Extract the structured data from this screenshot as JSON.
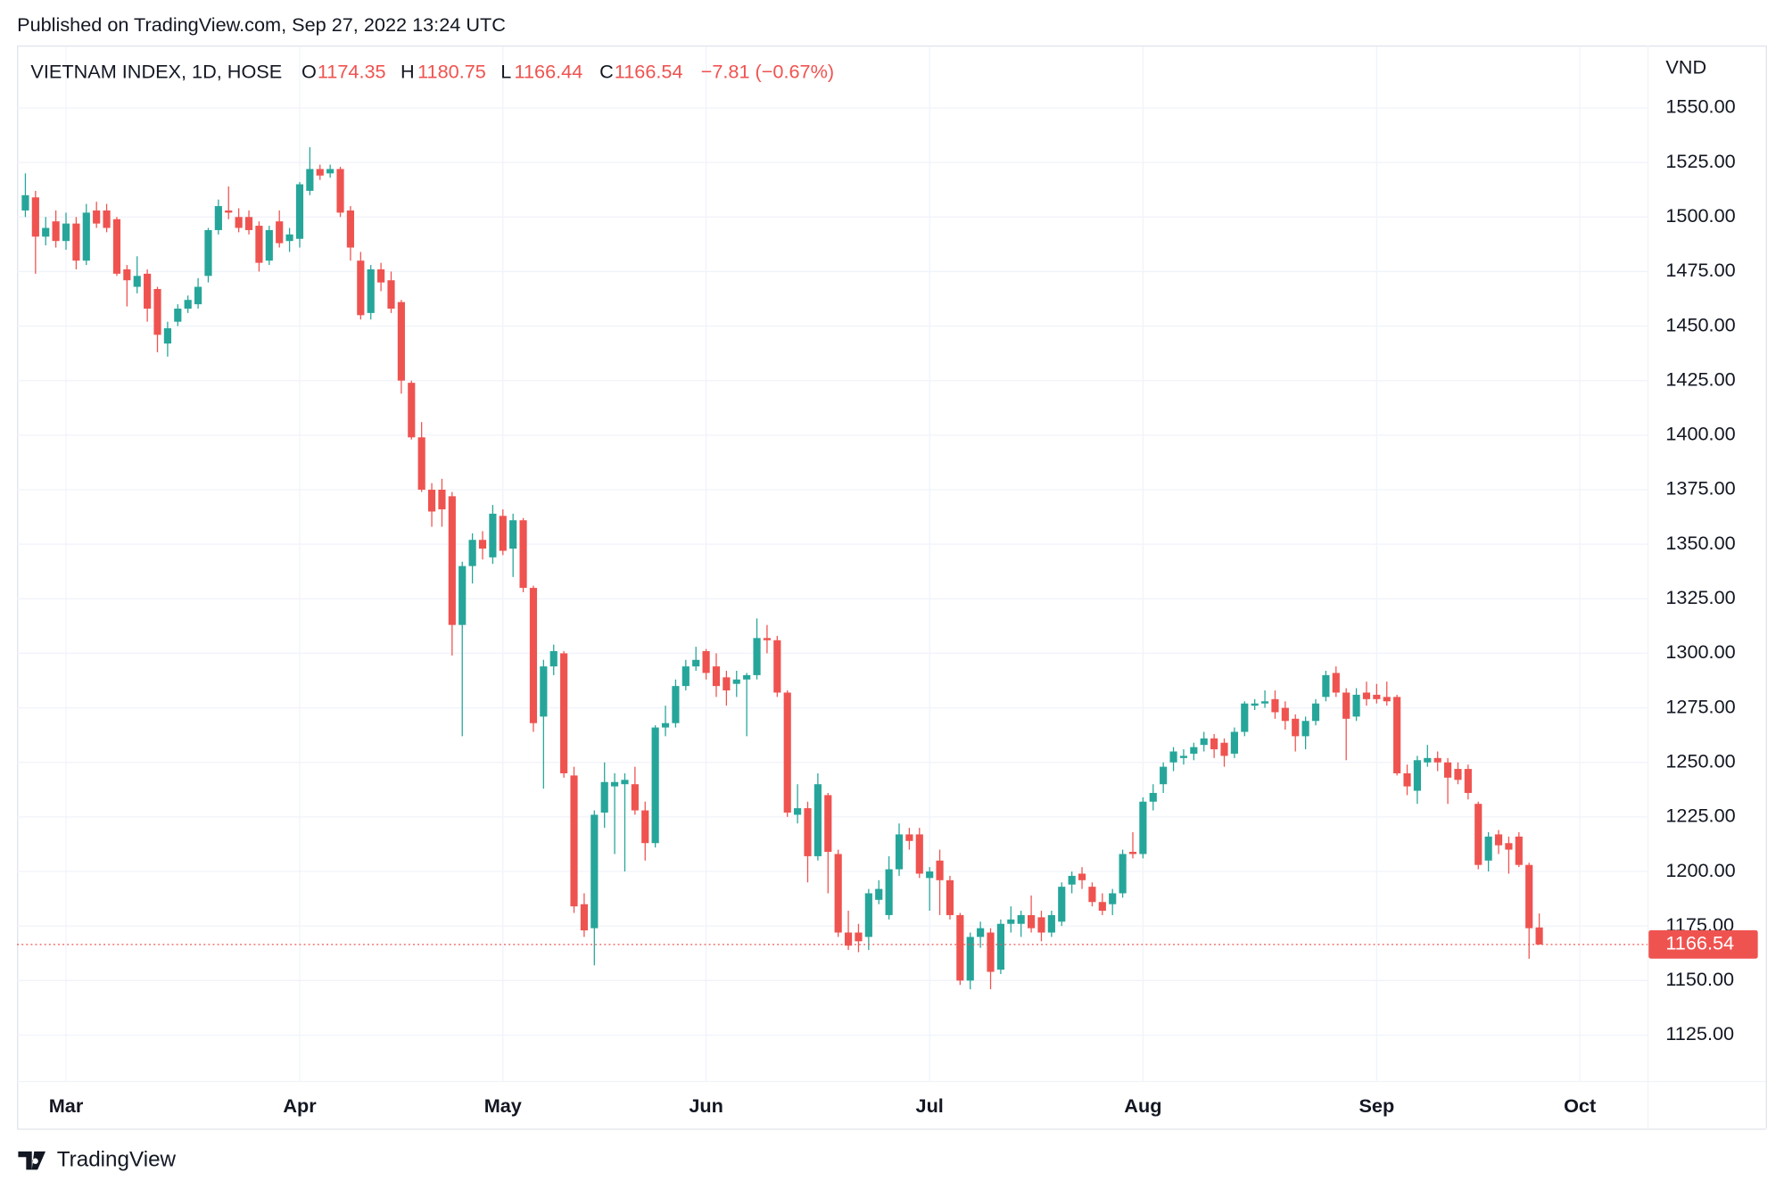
{
  "chart_data": {
    "type": "candlestick",
    "published": "Published on TradingView.com, Sep 27, 2022 13:24 UTC",
    "symbol": "VIETNAM INDEX, 1D, HOSE",
    "ohlc_keys": [
      "O",
      "H",
      "L",
      "C"
    ],
    "change_label": "−7.81 (−0.67%)",
    "y_axis_label": "VND",
    "brand": "TradingView",
    "up_color": "#26a69a",
    "down_color": "#ef5350",
    "grid": true,
    "categories": [
      null,
      null,
      null,
      null,
      "Mar",
      null,
      null,
      null,
      null,
      null,
      null,
      null,
      null,
      null,
      null,
      null,
      null,
      null,
      null,
      null,
      null,
      null,
      null,
      null,
      null,
      null,
      null,
      "Apr",
      null,
      null,
      null,
      null,
      null,
      null,
      null,
      null,
      null,
      null,
      null,
      null,
      null,
      null,
      null,
      null,
      null,
      null,
      null,
      "May",
      null,
      null,
      null,
      null,
      null,
      null,
      null,
      null,
      null,
      null,
      null,
      null,
      null,
      null,
      null,
      null,
      null,
      null,
      null,
      "Jun",
      null,
      null,
      null,
      null,
      null,
      null,
      null,
      null,
      null,
      null,
      null,
      null,
      null,
      null,
      null,
      null,
      null,
      null,
      null,
      null,
      null,
      "Jul",
      null,
      null,
      null,
      null,
      null,
      null,
      null,
      null,
      null,
      null,
      null,
      null,
      null,
      null,
      null,
      null,
      null,
      null,
      null,
      null,
      "Aug",
      null,
      null,
      null,
      null,
      null,
      null,
      null,
      null,
      null,
      null,
      null,
      null,
      null,
      null,
      null,
      null,
      null,
      null,
      null,
      null,
      null,
      null,
      "Sep",
      null,
      null,
      null,
      null,
      null,
      null,
      null,
      null,
      null,
      null,
      null,
      null,
      null,
      null,
      null,
      null,
      null,
      null,
      null,
      "Oct"
    ],
    "open": [
      1503,
      1509,
      1491,
      1498,
      1489,
      1497,
      1480,
      1503,
      1503,
      1499,
      1476,
      1468,
      1474,
      1467,
      1442,
      1452,
      1458,
      1460,
      1473,
      1494,
      1503,
      1500,
      1500,
      1496,
      1480,
      1498,
      1489,
      1490,
      1512,
      1522,
      1520,
      1522,
      1503,
      1480,
      1456,
      1476,
      1471,
      1461,
      1424,
      1399,
      1375,
      1375,
      1372,
      1313,
      1340,
      1352,
      1344,
      1363,
      1348,
      1361,
      1330,
      1271,
      1294,
      1300,
      1244,
      1185,
      1174,
      1227,
      1239,
      1240,
      1240,
      1228,
      1213,
      1266,
      1268,
      1285,
      1294,
      1301,
      1294,
      1289,
      1286,
      1288,
      1290,
      1307,
      1306,
      1282,
      1226,
      1229,
      1207,
      1235,
      1208,
      1172,
      1172,
      1170,
      1187,
      1180,
      1201,
      1217,
      1217,
      1197,
      1205,
      1196,
      1180,
      1150,
      1170,
      1172,
      1155,
      1176,
      1176,
      1180,
      1179,
      1172,
      1177,
      1194,
      1199,
      1193,
      1186,
      1185,
      1190,
      1209,
      1208,
      1232,
      1240,
      1250,
      1252,
      1254,
      1258,
      1261,
      1259,
      1254,
      1264,
      1276,
      1277,
      1279,
      1275,
      1270,
      1262,
      1269,
      1280,
      1291,
      1282,
      1271,
      1282,
      1281,
      1280,
      1280,
      1245,
      1237,
      1250,
      1252,
      1250,
      1247,
      1247,
      1231,
      1205,
      1217,
      1213,
      1216,
      1203,
      1174.35,
      null,
      null,
      null,
      null
    ],
    "high": [
      1520,
      1512,
      1500,
      1503,
      1502,
      1500,
      1506,
      1507,
      1506,
      1500,
      1478,
      1482,
      1476,
      1468,
      1452,
      1460,
      1464,
      1472,
      1495,
      1508,
      1514,
      1504,
      1503,
      1498,
      1496,
      1503,
      1495,
      1516,
      1532,
      1524,
      1524,
      1523,
      1505,
      1484,
      1478,
      1479,
      1475,
      1462,
      1425,
      1406,
      1378,
      1380,
      1374,
      1342,
      1355,
      1356,
      1368,
      1366,
      1364,
      1362,
      1331,
      1297,
      1304,
      1301,
      1248,
      1190,
      1228,
      1250,
      1245,
      1245,
      1248,
      1232,
      1267,
      1276,
      1288,
      1297,
      1303,
      1302,
      1300,
      1292,
      1292,
      1291,
      1316,
      1313,
      1308,
      1283,
      1240,
      1232,
      1245,
      1236,
      1210,
      1182,
      1176,
      1192,
      1196,
      1207,
      1222,
      1220,
      1220,
      1202,
      1210,
      1198,
      1181,
      1172,
      1177,
      1174,
      1178,
      1184,
      1182,
      1189,
      1182,
      1182,
      1195,
      1200,
      1202,
      1195,
      1190,
      1192,
      1210,
      1218,
      1234,
      1240,
      1250,
      1257,
      1256,
      1259,
      1264,
      1263,
      1261,
      1266,
      1278,
      1279,
      1283,
      1283,
      1278,
      1272,
      1271,
      1279,
      1292,
      1294,
      1284,
      1284,
      1287,
      1286,
      1287,
      1281,
      1249,
      1253,
      1258,
      1255,
      1252,
      1250,
      1249,
      1232,
      1218,
      1219,
      1216,
      1218,
      1204,
      1180.75,
      null,
      null,
      null,
      null
    ],
    "low": [
      1500,
      1474,
      1487,
      1486,
      1485,
      1476,
      1478,
      1495,
      1493,
      1473,
      1459,
      1465,
      1452,
      1438,
      1436,
      1450,
      1456,
      1458,
      1470,
      1492,
      1499,
      1493,
      1492,
      1475,
      1478,
      1486,
      1484,
      1486,
      1510,
      1517,
      1518,
      1500,
      1480,
      1453,
      1453,
      1466,
      1456,
      1419,
      1398,
      1374,
      1358,
      1358,
      1299,
      1262,
      1332,
      1343,
      1341,
      1345,
      1335,
      1328,
      1264,
      1238,
      1290,
      1243,
      1181,
      1170,
      1157,
      1220,
      1208,
      1200,
      1226,
      1205,
      1211,
      1262,
      1266,
      1283,
      1292,
      1288,
      1280,
      1276,
      1280,
      1262,
      1288,
      1300,
      1280,
      1225,
      1222,
      1195,
      1205,
      1190,
      1170,
      1164,
      1163,
      1164,
      1185,
      1178,
      1198,
      1210,
      1197,
      1182,
      1180,
      1178,
      1148,
      1146,
      1165,
      1146,
      1153,
      1172,
      1170,
      1172,
      1168,
      1170,
      1175,
      1190,
      1192,
      1184,
      1180,
      1180,
      1188,
      1206,
      1206,
      1228,
      1236,
      1246,
      1249,
      1251,
      1255,
      1252,
      1248,
      1252,
      1262,
      1274,
      1275,
      1270,
      1265,
      1255,
      1256,
      1267,
      1278,
      1280,
      1251,
      1269,
      1276,
      1277,
      1276,
      1244,
      1235,
      1231,
      1248,
      1246,
      1231,
      1240,
      1233,
      1201,
      1200,
      1208,
      1199,
      1202,
      1160,
      1166.44,
      null,
      null,
      null,
      null
    ],
    "close": [
      1510,
      1491,
      1495,
      1489,
      1497,
      1480,
      1502,
      1497,
      1495,
      1474,
      1471,
      1473,
      1458,
      1446,
      1449,
      1458,
      1462,
      1468,
      1494,
      1505,
      1502,
      1495,
      1494,
      1479,
      1494,
      1488,
      1492,
      1515,
      1522,
      1519,
      1522,
      1502,
      1486,
      1455,
      1476,
      1470,
      1458,
      1425,
      1399,
      1375,
      1365,
      1366,
      1313,
      1340,
      1352,
      1348,
      1364,
      1347,
      1361,
      1330,
      1268,
      1294,
      1301,
      1245,
      1184,
      1173,
      1226,
      1241,
      1241,
      1242,
      1228,
      1213,
      1266,
      1268,
      1285,
      1294,
      1297,
      1291,
      1285,
      1283,
      1288,
      1290,
      1307,
      1306,
      1282,
      1227,
      1229,
      1207,
      1240,
      1209,
      1172,
      1166,
      1168,
      1190,
      1192,
      1201,
      1217,
      1214,
      1199,
      1200,
      1196,
      1180,
      1150,
      1170,
      1174,
      1154,
      1176,
      1178,
      1180,
      1174,
      1172,
      1180,
      1193,
      1198,
      1196,
      1186,
      1182,
      1190,
      1208,
      1208,
      1232,
      1236,
      1248,
      1255,
      1253,
      1257,
      1261,
      1256,
      1253,
      1264,
      1277,
      1277,
      1278,
      1273,
      1269,
      1262,
      1269,
      1277,
      1290,
      1282,
      1270,
      1281,
      1279,
      1279,
      1278,
      1245,
      1239,
      1251,
      1252,
      1250,
      1243,
      1242,
      1236,
      1203,
      1216,
      1212,
      1210,
      1203,
      1174,
      1166.54,
      null,
      null,
      null,
      null
    ],
    "ylim": [
      1104,
      1576
    ],
    "yticks": [
      {
        "value": 1125,
        "label": "1125.00"
      },
      {
        "value": 1150,
        "label": "1150.00"
      },
      {
        "value": 1175,
        "label": "1175.00"
      },
      {
        "value": 1200,
        "label": "1200.00"
      },
      {
        "value": 1225,
        "label": "1225.00"
      },
      {
        "value": 1250,
        "label": "1250.00"
      },
      {
        "value": 1275,
        "label": "1275.00"
      },
      {
        "value": 1300,
        "label": "1300.00"
      },
      {
        "value": 1325,
        "label": "1325.00"
      },
      {
        "value": 1350,
        "label": "1350.00"
      },
      {
        "value": 1375,
        "label": "1375.00"
      },
      {
        "value": 1400,
        "label": "1400.00"
      },
      {
        "value": 1425,
        "label": "1425.00"
      },
      {
        "value": 1450,
        "label": "1450.00"
      },
      {
        "value": 1475,
        "label": "1475.00"
      },
      {
        "value": 1500,
        "label": "1500.00"
      },
      {
        "value": 1525,
        "label": "1525.00"
      },
      {
        "value": 1550,
        "label": "1550.00"
      }
    ]
  }
}
